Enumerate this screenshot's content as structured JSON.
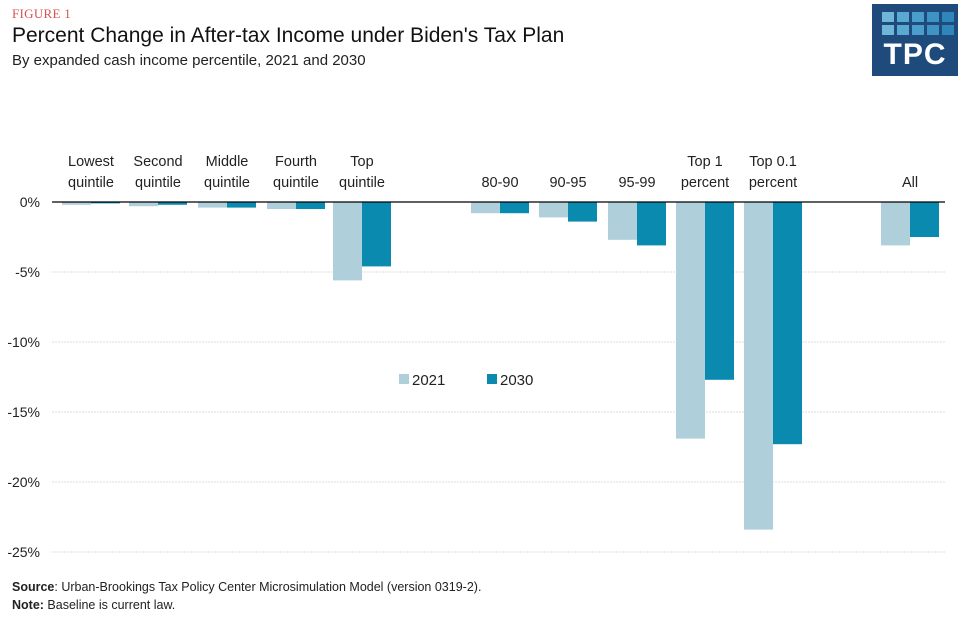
{
  "figure_label": "FIGURE 1",
  "title": "Percent Change in After-tax Income under Biden's Tax Plan",
  "subtitle": "By expanded cash income percentile, 2021 and 2030",
  "logo": {
    "text": "TPC",
    "background": "#1e4a7c",
    "cell_colors": [
      "#6fb6d9",
      "#5aa9d2",
      "#4a9ecc",
      "#3f93c4",
      "#2f86ba"
    ]
  },
  "colors": {
    "series_2021": "#afcfdb",
    "series_2030": "#0b8ab0",
    "axis": "#000000",
    "grid": "#dddddd"
  },
  "chart_data": {
    "type": "bar",
    "title": "Percent Change in After-tax Income under Biden's Tax Plan",
    "subtitle": "By expanded cash income percentile, 2021 and 2030",
    "xlabel": "",
    "ylabel": "",
    "categories": [
      [
        "Lowest",
        "quintile"
      ],
      [
        "Second",
        "quintile"
      ],
      [
        "Middle",
        "quintile"
      ],
      [
        "Fourth",
        "quintile"
      ],
      [
        "Top",
        "quintile"
      ],
      [
        "80-90"
      ],
      [
        "90-95"
      ],
      [
        "95-99"
      ],
      [
        "Top 1",
        "percent"
      ],
      [
        "Top 0.1",
        "percent"
      ],
      [
        "All"
      ]
    ],
    "category_group_gaps_after": [
      4,
      9
    ],
    "series": [
      {
        "name": "2021",
        "values": [
          -0.2,
          -0.3,
          -0.4,
          -0.5,
          -5.6,
          -0.8,
          -1.1,
          -2.7,
          -16.9,
          -23.4,
          -3.1
        ]
      },
      {
        "name": "2030",
        "values": [
          -0.1,
          -0.2,
          -0.4,
          -0.5,
          -4.6,
          -0.8,
          -1.4,
          -3.1,
          -12.7,
          -17.3,
          -2.5
        ]
      }
    ],
    "ylim": [
      -25,
      0
    ],
    "yticks": [
      0,
      -5,
      -10,
      -15,
      -20,
      -25
    ],
    "ytick_labels": [
      "0%",
      "-5%",
      "-10%",
      "-15%",
      "-20%",
      "-25%"
    ],
    "grid": true,
    "legend": {
      "entries": [
        "2021",
        "2030"
      ],
      "placement": "center"
    }
  },
  "footer": {
    "source_label": "Source",
    "source_text": ": Urban-Brookings Tax Policy Center Microsimulation Model (version 0319-2).",
    "note_label": "Note:",
    "note_text": " Baseline is current law."
  }
}
